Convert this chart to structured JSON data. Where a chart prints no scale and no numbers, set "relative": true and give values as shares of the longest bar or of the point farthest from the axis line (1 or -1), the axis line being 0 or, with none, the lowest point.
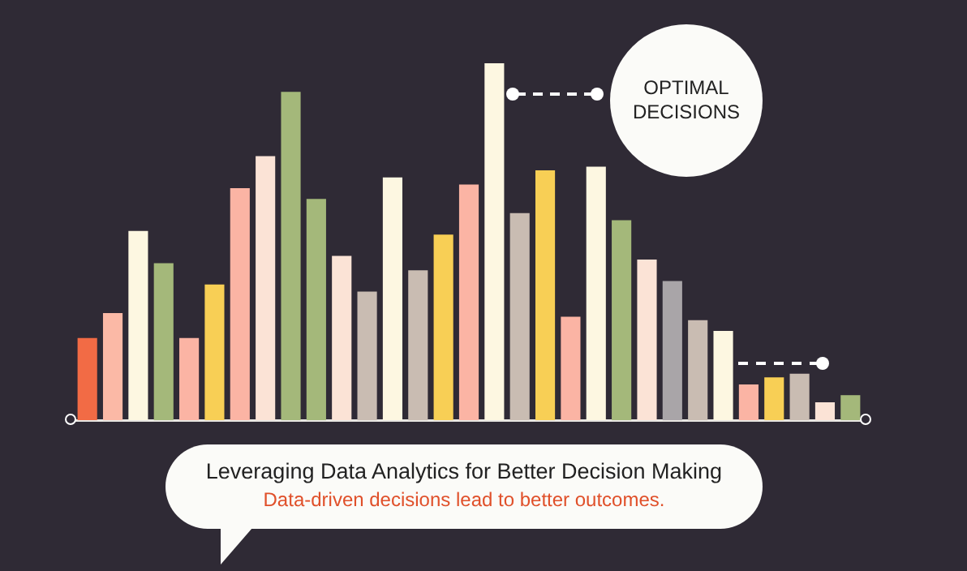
{
  "chart_data": {
    "type": "bar",
    "relative": true,
    "title": "Leveraging Data Analytics for Better Decision Making",
    "subtitle": "Data-driven decisions lead to better outcomes.",
    "annotations": [
      "OPTIMAL DECISIONS"
    ],
    "categories": [
      null,
      null,
      null,
      null,
      null,
      null,
      null,
      null,
      null,
      null,
      null,
      null,
      null,
      null,
      null,
      null,
      null,
      null,
      null,
      null,
      null,
      null,
      null,
      null,
      null,
      null,
      null,
      null,
      null,
      null,
      null
    ],
    "values": [
      0.23,
      0.3,
      0.53,
      0.44,
      0.23,
      0.38,
      0.65,
      0.74,
      0.92,
      0.62,
      0.46,
      0.36,
      0.68,
      0.42,
      0.52,
      0.66,
      1,
      0.58,
      0.7,
      0.29,
      0.71,
      0.56,
      0.45,
      0.39,
      0.28,
      0.25,
      0.1,
      0.12,
      0.13,
      0.05,
      0.07
    ],
    "colors": [
      "#f26b45",
      "#fbb9a6",
      "#fdf7e1",
      "#a4b87a",
      "#fbb4a4",
      "#f8cf55",
      "#fbb4a4",
      "#fbe3d6",
      "#a4b87a",
      "#a4b87a",
      "#fbe3d6",
      "#c9bcb2",
      "#fdf7e1",
      "#c9bcb2",
      "#f8cf55",
      "#fbb4a4",
      "#fdf7e1",
      "#c9bcb2",
      "#f8cf55",
      "#fbb4a4",
      "#fdf7e1",
      "#a4b87a",
      "#fbe3d6",
      "#a9a5a8",
      "#c9bcb2",
      "#fdf7e1",
      "#fbb4a4",
      "#f8cf55",
      "#c9bcb2",
      "#fbe3d6",
      "#a4b87a"
    ],
    "grid": false,
    "legend": false
  }
}
